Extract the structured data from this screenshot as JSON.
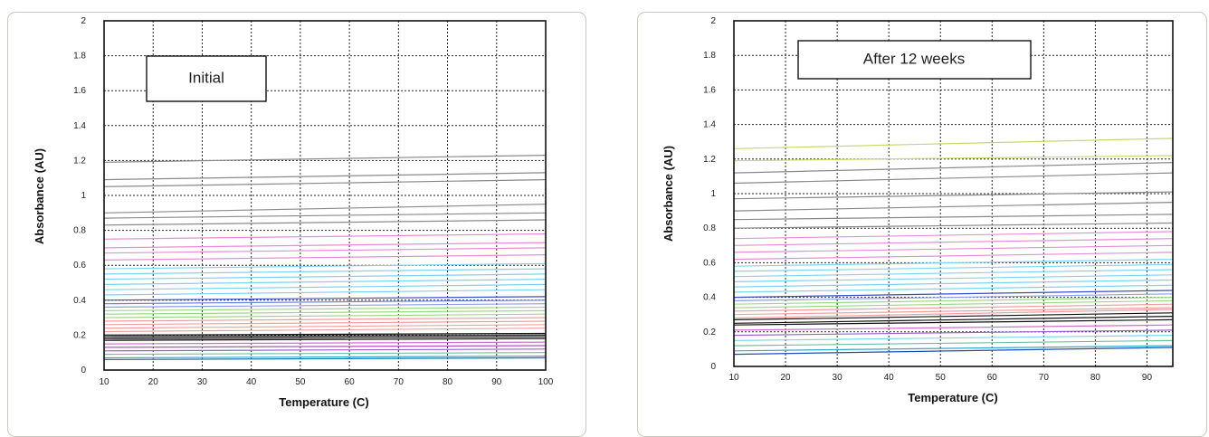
{
  "chart_data": [
    {
      "type": "line",
      "annotation": "Initial",
      "xlabel": "Temperature (C)",
      "ylabel": "Absorbance (AU)",
      "xlim": [
        10,
        100
      ],
      "ylim": [
        0,
        2
      ],
      "xticks": [
        "10",
        "20",
        "30",
        "40",
        "50",
        "60",
        "70",
        "80",
        "90",
        "100"
      ],
      "yticks": [
        "0",
        "0.2",
        "0.4",
        "0.6",
        "0.8",
        "1",
        "1.2",
        "1.4",
        "1.6",
        "1.8",
        "2"
      ],
      "grid": true,
      "x": [
        10,
        100
      ],
      "series": [
        {
          "values": [
            1.19,
            1.23
          ],
          "color": "#8a8a8a"
        },
        {
          "values": [
            1.09,
            1.13
          ],
          "color": "#8a8a8a"
        },
        {
          "values": [
            1.05,
            1.09
          ],
          "color": "#8a8a8a"
        },
        {
          "values": [
            0.9,
            0.95
          ],
          "color": "#8a8a8a"
        },
        {
          "values": [
            0.87,
            0.9
          ],
          "color": "#8a8a8a"
        },
        {
          "values": [
            0.83,
            0.86
          ],
          "color": "#8a8a8a"
        },
        {
          "values": [
            0.75,
            0.78
          ],
          "color": "#e58fd6"
        },
        {
          "values": [
            0.7,
            0.73
          ],
          "color": "#e58fd6"
        },
        {
          "values": [
            0.67,
            0.7
          ],
          "color": "#e58fd6"
        },
        {
          "values": [
            0.63,
            0.66
          ],
          "color": "#e58fd6"
        },
        {
          "values": [
            0.58,
            0.61
          ],
          "color": "#7fd3ee"
        },
        {
          "values": [
            0.55,
            0.58
          ],
          "color": "#7fd3ee"
        },
        {
          "values": [
            0.52,
            0.55
          ],
          "color": "#7fd3ee"
        },
        {
          "values": [
            0.49,
            0.52
          ],
          "color": "#7fd3ee"
        },
        {
          "values": [
            0.46,
            0.49
          ],
          "color": "#7fd3ee"
        },
        {
          "values": [
            0.43,
            0.46
          ],
          "color": "#7fd3ee"
        },
        {
          "values": [
            0.4,
            0.42
          ],
          "color": "#3b4fc4"
        },
        {
          "values": [
            0.38,
            0.4
          ],
          "color": "#6b7ee0"
        },
        {
          "values": [
            0.36,
            0.38
          ],
          "color": "#8f9ce8"
        },
        {
          "values": [
            0.34,
            0.36
          ],
          "color": "#9fd88a"
        },
        {
          "values": [
            0.32,
            0.34
          ],
          "color": "#9fd88a"
        },
        {
          "values": [
            0.3,
            0.32
          ],
          "color": "#9fd88a"
        },
        {
          "values": [
            0.28,
            0.3
          ],
          "color": "#f0a0a0"
        },
        {
          "values": [
            0.26,
            0.28
          ],
          "color": "#f0a0a0"
        },
        {
          "values": [
            0.24,
            0.26
          ],
          "color": "#f0a0a0"
        },
        {
          "values": [
            0.22,
            0.24
          ],
          "color": "#f0a0a0"
        },
        {
          "values": [
            0.2,
            0.21
          ],
          "color": "#111111"
        },
        {
          "values": [
            0.19,
            0.2
          ],
          "color": "#111111"
        },
        {
          "values": [
            0.18,
            0.19
          ],
          "color": "#111111"
        },
        {
          "values": [
            0.17,
            0.18
          ],
          "color": "#111111"
        },
        {
          "values": [
            0.15,
            0.16
          ],
          "color": "#d070c8"
        },
        {
          "values": [
            0.13,
            0.14
          ],
          "color": "#b050c0"
        },
        {
          "values": [
            0.11,
            0.12
          ],
          "color": "#9a60d0"
        },
        {
          "values": [
            0.09,
            0.1
          ],
          "color": "#70c0a0"
        },
        {
          "values": [
            0.07,
            0.08
          ],
          "color": "#3aa6c6"
        },
        {
          "values": [
            0.06,
            0.07
          ],
          "color": "#1f7ab0"
        }
      ]
    },
    {
      "type": "line",
      "annotation": "After 12 weeks",
      "xlabel": "Temperature (C)",
      "ylabel": "Absorbance (AU)",
      "xlim": [
        10,
        95
      ],
      "ylim": [
        0,
        2
      ],
      "xticks": [
        "10",
        "20",
        "30",
        "40",
        "50",
        "60",
        "70",
        "80",
        "90"
      ],
      "yticks": [
        "0",
        "0.2",
        "0.4",
        "0.6",
        "0.8",
        "1",
        "1.2",
        "1.4",
        "1.6",
        "1.8",
        "2"
      ],
      "grid": true,
      "x": [
        10,
        95
      ],
      "series": [
        {
          "values": [
            1.26,
            1.32
          ],
          "color": "#c8d870"
        },
        {
          "values": [
            1.19,
            1.22
          ],
          "color": "#c8d870"
        },
        {
          "values": [
            1.12,
            1.18
          ],
          "color": "#8a8a8a"
        },
        {
          "values": [
            1.06,
            1.12
          ],
          "color": "#8a8a8a"
        },
        {
          "values": [
            0.97,
            1.01
          ],
          "color": "#8a8a8a"
        },
        {
          "values": [
            0.9,
            0.95
          ],
          "color": "#8a8a8a"
        },
        {
          "values": [
            0.85,
            0.88
          ],
          "color": "#8a8a8a"
        },
        {
          "values": [
            0.8,
            0.83
          ],
          "color": "#8a8a8a"
        },
        {
          "values": [
            0.74,
            0.78
          ],
          "color": "#e58fd6"
        },
        {
          "values": [
            0.7,
            0.74
          ],
          "color": "#e58fd6"
        },
        {
          "values": [
            0.66,
            0.7
          ],
          "color": "#e58fd6"
        },
        {
          "values": [
            0.62,
            0.66
          ],
          "color": "#e58fd6"
        },
        {
          "values": [
            0.58,
            0.62
          ],
          "color": "#7fd3ee"
        },
        {
          "values": [
            0.55,
            0.59
          ],
          "color": "#7fd3ee"
        },
        {
          "values": [
            0.52,
            0.56
          ],
          "color": "#7fd3ee"
        },
        {
          "values": [
            0.49,
            0.53
          ],
          "color": "#7fd3ee"
        },
        {
          "values": [
            0.46,
            0.5
          ],
          "color": "#7fd3ee"
        },
        {
          "values": [
            0.43,
            0.47
          ],
          "color": "#7fd3ee"
        },
        {
          "values": [
            0.4,
            0.44
          ],
          "color": "#3b4fc4"
        },
        {
          "values": [
            0.38,
            0.42
          ],
          "color": "#8f9ce8"
        },
        {
          "values": [
            0.36,
            0.4
          ],
          "color": "#9fd88a"
        },
        {
          "values": [
            0.34,
            0.38
          ],
          "color": "#9fd88a"
        },
        {
          "values": [
            0.32,
            0.36
          ],
          "color": "#f0a0a0"
        },
        {
          "values": [
            0.3,
            0.34
          ],
          "color": "#f0a0a0"
        },
        {
          "values": [
            0.28,
            0.33
          ],
          "color": "#f0a0a0"
        },
        {
          "values": [
            0.27,
            0.31
          ],
          "color": "#111111"
        },
        {
          "values": [
            0.25,
            0.29
          ],
          "color": "#111111"
        },
        {
          "values": [
            0.24,
            0.27
          ],
          "color": "#111111"
        },
        {
          "values": [
            0.21,
            0.24
          ],
          "color": "#d070c8"
        },
        {
          "values": [
            0.18,
            0.21
          ],
          "color": "#9a60d0"
        },
        {
          "values": [
            0.15,
            0.18
          ],
          "color": "#7fd3ee"
        },
        {
          "values": [
            0.12,
            0.15
          ],
          "color": "#70c0a0"
        },
        {
          "values": [
            0.09,
            0.12
          ],
          "color": "#3aa6c6"
        },
        {
          "values": [
            0.07,
            0.11
          ],
          "color": "#1f4fb0"
        }
      ]
    }
  ]
}
